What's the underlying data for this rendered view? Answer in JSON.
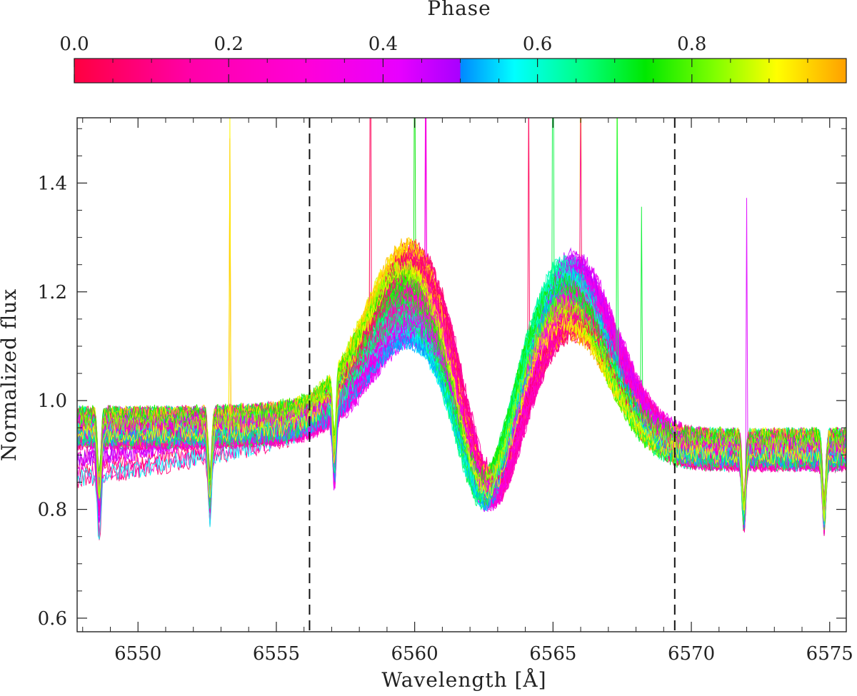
{
  "chart_data": {
    "type": "line",
    "title": "",
    "xlabel": "Wavelength [Å]",
    "ylabel": "Normalized flux",
    "xlim": [
      6547.8,
      6575.6
    ],
    "ylim": [
      0.575,
      1.52
    ],
    "xticks_major": [
      "6550",
      "6555",
      "6560",
      "6565",
      "6570",
      "6575"
    ],
    "xtick_values": [
      6550,
      6555,
      6560,
      6565,
      6570,
      6575
    ],
    "yticks_major": [
      "0.6",
      "0.8",
      "1.0",
      "1.2",
      "1.4"
    ],
    "ytick_values": [
      0.6,
      0.8,
      1.0,
      1.2,
      1.4
    ],
    "grid": false,
    "reference_lines": [
      6556.2,
      6569.4
    ],
    "profile": {
      "continuum_blue": 0.95,
      "continuum_red": 0.91,
      "blue_peak": {
        "wavelength": 6559.9,
        "flux": 1.17
      },
      "central_trough": {
        "wavelength": 6562.6,
        "flux": 0.76
      },
      "red_peak": {
        "wavelength": 6565.7,
        "flux": 1.2
      },
      "telluric_absorption": [
        6548.6,
        6552.6,
        6557.1,
        6571.9,
        6574.8
      ]
    },
    "spectrum_count": 160,
    "colorbar": {
      "title": "Phase",
      "range": [
        0.0,
        1.0
      ],
      "tick_labels": [
        "0.0",
        "0.2",
        "0.4",
        "0.6",
        "0.8"
      ],
      "tick_values": [
        0.0,
        0.2,
        0.4,
        0.6,
        0.8
      ],
      "colors": [
        "#ff0040",
        "#ff00a8",
        "#ff00d8",
        "#e800ff",
        "#a800ff",
        "#0088ff",
        "#00ffff",
        "#00ff80",
        "#00e800",
        "#80ff00",
        "#ffff00",
        "#ffa000"
      ],
      "color_stops": [
        0.0,
        0.15,
        0.3,
        0.42,
        0.5,
        0.5,
        0.57,
        0.66,
        0.74,
        0.83,
        0.91,
        1.0
      ]
    }
  }
}
